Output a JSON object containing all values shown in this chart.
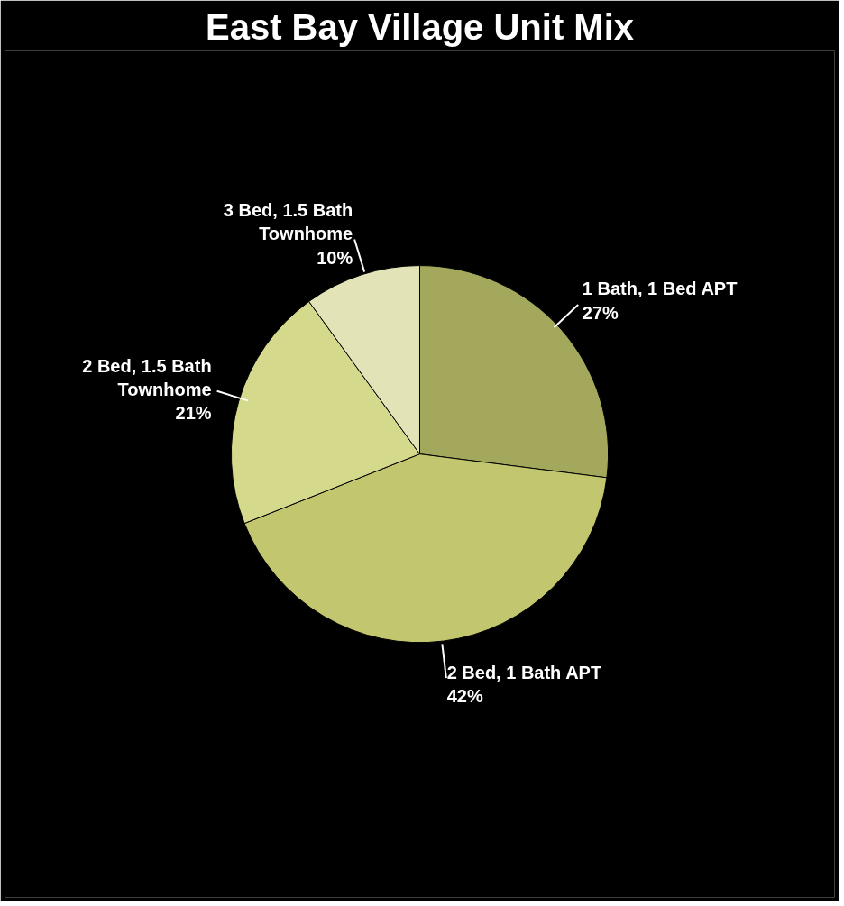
{
  "chart_data": {
    "type": "pie",
    "title": "East Bay Village Unit Mix",
    "categories": [
      "1 Bath, 1 Bed APT",
      "2 Bed, 1 Bath APT",
      "2 Bed, 1.5 Bath Townhome",
      "3 Bed, 1.5 Bath Townhome"
    ],
    "values": [
      27,
      42,
      21,
      10
    ],
    "value_labels": [
      "27%",
      "42%",
      "21%",
      "10%"
    ],
    "colors": [
      "#a4a85c",
      "#c2c66e",
      "#d4d98c",
      "#e2e4b8"
    ]
  }
}
